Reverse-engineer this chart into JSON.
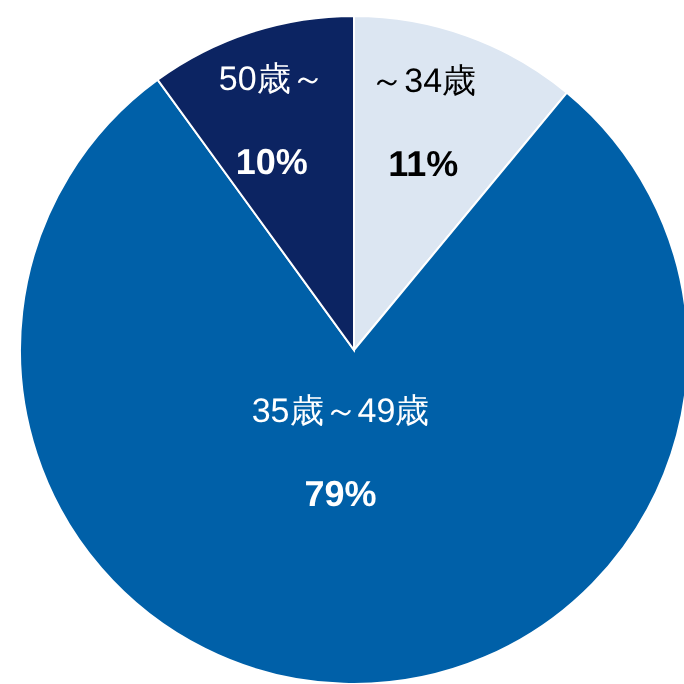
{
  "chart_data": {
    "type": "pie",
    "categories": [
      "～34歳",
      "35歳～49歳",
      "50歳～"
    ],
    "values": [
      11,
      79,
      10
    ],
    "value_labels": [
      "11%",
      "79%",
      "10%"
    ],
    "colors": [
      "#dce6f2",
      "#0060a8",
      "#0c2462"
    ],
    "legend": false
  }
}
